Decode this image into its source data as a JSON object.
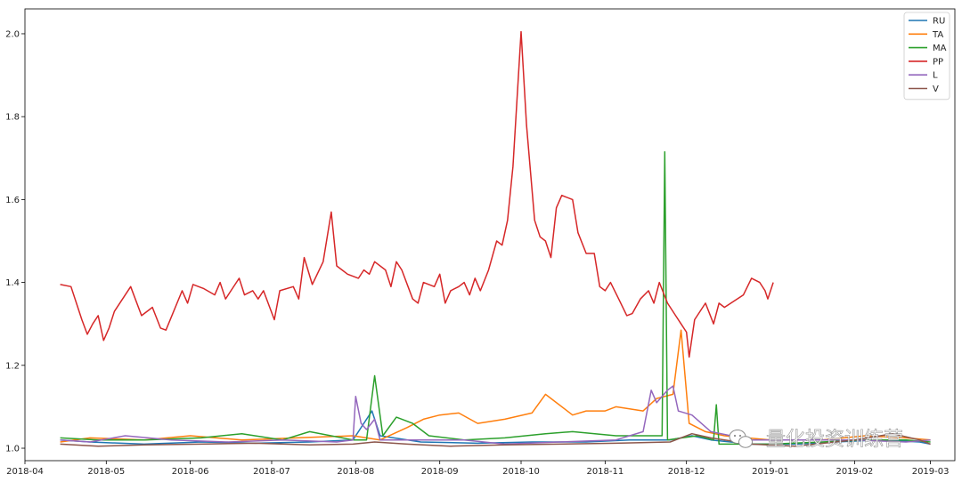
{
  "chart_data": {
    "type": "line",
    "title": "",
    "xlabel": "",
    "ylabel": "",
    "x_range": [
      "2018-04-01",
      "2019-03-10"
    ],
    "ylim": [
      0.97,
      2.06
    ],
    "grid": false,
    "legend_position": "top-right",
    "x_ticks": [
      "2018-04",
      "2018-05",
      "2018-06",
      "2018-07",
      "2018-08",
      "2018-09",
      "2018-10",
      "2018-11",
      "2018-12",
      "2019-01",
      "2019-02",
      "2019-03"
    ],
    "y_ticks": [
      "1.0",
      "1.2",
      "1.4",
      "1.6",
      "1.8",
      "2.0"
    ],
    "series": [
      {
        "name": "RU",
        "color": "#1f77b4",
        "points": [
          [
            "2018-04-14",
            1.02
          ],
          [
            "2018-04-25",
            1.015
          ],
          [
            "2018-05-15",
            1.01
          ],
          [
            "2018-06-05",
            1.015
          ],
          [
            "2018-06-25",
            1.012
          ],
          [
            "2018-07-15",
            1.015
          ],
          [
            "2018-07-31",
            1.02
          ],
          [
            "2018-08-07",
            1.09
          ],
          [
            "2018-08-10",
            1.03
          ],
          [
            "2018-08-25",
            1.015
          ],
          [
            "2018-09-15",
            1.012
          ],
          [
            "2018-10-05",
            1.015
          ],
          [
            "2018-10-25",
            1.015
          ],
          [
            "2018-11-10",
            1.02
          ],
          [
            "2018-11-25",
            1.02
          ],
          [
            "2018-12-03",
            1.03
          ],
          [
            "2018-12-10",
            1.02
          ],
          [
            "2018-12-25",
            1.01
          ],
          [
            "2019-01-10",
            1.01
          ],
          [
            "2019-01-25",
            1.015
          ],
          [
            "2019-02-10",
            1.02
          ],
          [
            "2019-02-25",
            1.015
          ],
          [
            "2019-03-01",
            1.01
          ]
        ]
      },
      {
        "name": "TA",
        "color": "#ff7f0e",
        "points": [
          [
            "2018-04-14",
            1.015
          ],
          [
            "2018-04-25",
            1.025
          ],
          [
            "2018-05-15",
            1.02
          ],
          [
            "2018-06-01",
            1.03
          ],
          [
            "2018-06-20",
            1.02
          ],
          [
            "2018-07-10",
            1.025
          ],
          [
            "2018-07-31",
            1.03
          ],
          [
            "2018-08-10",
            1.02
          ],
          [
            "2018-08-20",
            1.05
          ],
          [
            "2018-08-26",
            1.07
          ],
          [
            "2018-09-01",
            1.08
          ],
          [
            "2018-09-08",
            1.085
          ],
          [
            "2018-09-15",
            1.06
          ],
          [
            "2018-09-25",
            1.07
          ],
          [
            "2018-10-05",
            1.085
          ],
          [
            "2018-10-10",
            1.13
          ],
          [
            "2018-10-20",
            1.08
          ],
          [
            "2018-10-25",
            1.09
          ],
          [
            "2018-11-01",
            1.09
          ],
          [
            "2018-11-05",
            1.1
          ],
          [
            "2018-11-15",
            1.09
          ],
          [
            "2018-11-20",
            1.12
          ],
          [
            "2018-11-26",
            1.13
          ],
          [
            "2018-11-29",
            1.285
          ],
          [
            "2018-12-02",
            1.06
          ],
          [
            "2018-12-08",
            1.04
          ],
          [
            "2018-12-15",
            1.03
          ],
          [
            "2019-01-01",
            1.02
          ],
          [
            "2019-01-20",
            1.02
          ],
          [
            "2019-02-05",
            1.03
          ],
          [
            "2019-02-20",
            1.025
          ],
          [
            "2019-03-01",
            1.02
          ]
        ]
      },
      {
        "name": "MA",
        "color": "#2ca02c",
        "points": [
          [
            "2018-04-14",
            1.025
          ],
          [
            "2018-04-28",
            1.02
          ],
          [
            "2018-05-15",
            1.02
          ],
          [
            "2018-06-05",
            1.025
          ],
          [
            "2018-06-20",
            1.035
          ],
          [
            "2018-07-05",
            1.02
          ],
          [
            "2018-07-15",
            1.04
          ],
          [
            "2018-07-31",
            1.02
          ],
          [
            "2018-08-05",
            1.02
          ],
          [
            "2018-08-08",
            1.175
          ],
          [
            "2018-08-11",
            1.03
          ],
          [
            "2018-08-16",
            1.075
          ],
          [
            "2018-08-22",
            1.06
          ],
          [
            "2018-08-28",
            1.03
          ],
          [
            "2018-09-10",
            1.02
          ],
          [
            "2018-09-25",
            1.025
          ],
          [
            "2018-10-10",
            1.035
          ],
          [
            "2018-10-20",
            1.04
          ],
          [
            "2018-11-05",
            1.03
          ],
          [
            "2018-11-15",
            1.03
          ],
          [
            "2018-11-22",
            1.03
          ],
          [
            "2018-11-23",
            1.715
          ],
          [
            "2018-11-24",
            1.02
          ],
          [
            "2018-12-05",
            1.03
          ],
          [
            "2018-12-11",
            1.02
          ],
          [
            "2018-12-12",
            1.105
          ],
          [
            "2018-12-13",
            1.01
          ],
          [
            "2019-01-01",
            1.01
          ],
          [
            "2019-01-20",
            1.015
          ],
          [
            "2019-02-05",
            1.02
          ],
          [
            "2019-02-20",
            1.02
          ],
          [
            "2019-03-01",
            1.015
          ]
        ]
      },
      {
        "name": "PP",
        "color": "#d62728",
        "points": [
          [
            "2018-04-14",
            1.395
          ],
          [
            "2018-04-18",
            1.39
          ],
          [
            "2018-04-20",
            1.35
          ],
          [
            "2018-04-22",
            1.31
          ],
          [
            "2018-04-24",
            1.275
          ],
          [
            "2018-04-26",
            1.3
          ],
          [
            "2018-04-28",
            1.32
          ],
          [
            "2018-04-30",
            1.26
          ],
          [
            "2018-05-02",
            1.29
          ],
          [
            "2018-05-04",
            1.33
          ],
          [
            "2018-05-10",
            1.39
          ],
          [
            "2018-05-14",
            1.32
          ],
          [
            "2018-05-18",
            1.34
          ],
          [
            "2018-05-21",
            1.29
          ],
          [
            "2018-05-23",
            1.285
          ],
          [
            "2018-05-29",
            1.38
          ],
          [
            "2018-05-31",
            1.35
          ],
          [
            "2018-06-02",
            1.395
          ],
          [
            "2018-06-06",
            1.385
          ],
          [
            "2018-06-10",
            1.37
          ],
          [
            "2018-06-12",
            1.4
          ],
          [
            "2018-06-14",
            1.36
          ],
          [
            "2018-06-16",
            1.38
          ],
          [
            "2018-06-19",
            1.41
          ],
          [
            "2018-06-21",
            1.37
          ],
          [
            "2018-06-24",
            1.38
          ],
          [
            "2018-06-26",
            1.36
          ],
          [
            "2018-06-28",
            1.38
          ],
          [
            "2018-07-02",
            1.31
          ],
          [
            "2018-07-04",
            1.38
          ],
          [
            "2018-07-09",
            1.39
          ],
          [
            "2018-07-11",
            1.36
          ],
          [
            "2018-07-13",
            1.46
          ],
          [
            "2018-07-16",
            1.395
          ],
          [
            "2018-07-20",
            1.45
          ],
          [
            "2018-07-23",
            1.57
          ],
          [
            "2018-07-25",
            1.44
          ],
          [
            "2018-07-27",
            1.43
          ],
          [
            "2018-07-29",
            1.42
          ],
          [
            "2018-08-02",
            1.41
          ],
          [
            "2018-08-04",
            1.43
          ],
          [
            "2018-08-06",
            1.42
          ],
          [
            "2018-08-08",
            1.45
          ],
          [
            "2018-08-12",
            1.43
          ],
          [
            "2018-08-14",
            1.39
          ],
          [
            "2018-08-16",
            1.45
          ],
          [
            "2018-08-18",
            1.43
          ],
          [
            "2018-08-22",
            1.36
          ],
          [
            "2018-08-24",
            1.35
          ],
          [
            "2018-08-26",
            1.4
          ],
          [
            "2018-08-30",
            1.39
          ],
          [
            "2018-09-01",
            1.42
          ],
          [
            "2018-09-03",
            1.35
          ],
          [
            "2018-09-05",
            1.38
          ],
          [
            "2018-09-08",
            1.39
          ],
          [
            "2018-09-10",
            1.4
          ],
          [
            "2018-09-12",
            1.37
          ],
          [
            "2018-09-14",
            1.41
          ],
          [
            "2018-09-16",
            1.38
          ],
          [
            "2018-09-19",
            1.43
          ],
          [
            "2018-09-22",
            1.5
          ],
          [
            "2018-09-24",
            1.49
          ],
          [
            "2018-09-26",
            1.55
          ],
          [
            "2018-09-28",
            1.68
          ],
          [
            "2018-10-01",
            2.005
          ],
          [
            "2018-10-03",
            1.78
          ],
          [
            "2018-10-06",
            1.55
          ],
          [
            "2018-10-08",
            1.51
          ],
          [
            "2018-10-10",
            1.5
          ],
          [
            "2018-10-12",
            1.46
          ],
          [
            "2018-10-14",
            1.58
          ],
          [
            "2018-10-16",
            1.61
          ],
          [
            "2018-10-20",
            1.6
          ],
          [
            "2018-10-22",
            1.52
          ],
          [
            "2018-10-25",
            1.47
          ],
          [
            "2018-10-28",
            1.47
          ],
          [
            "2018-10-30",
            1.39
          ],
          [
            "2018-11-01",
            1.38
          ],
          [
            "2018-11-03",
            1.4
          ],
          [
            "2018-11-06",
            1.36
          ],
          [
            "2018-11-09",
            1.32
          ],
          [
            "2018-11-11",
            1.325
          ],
          [
            "2018-11-14",
            1.36
          ],
          [
            "2018-11-17",
            1.38
          ],
          [
            "2018-11-19",
            1.35
          ],
          [
            "2018-11-21",
            1.4
          ],
          [
            "2018-11-24",
            1.35
          ],
          [
            "2018-11-27",
            1.32
          ],
          [
            "2018-11-29",
            1.3
          ],
          [
            "2018-12-01",
            1.28
          ],
          [
            "2018-12-02",
            1.22
          ],
          [
            "2018-12-04",
            1.31
          ],
          [
            "2018-12-08",
            1.35
          ],
          [
            "2018-12-11",
            1.3
          ],
          [
            "2018-12-13",
            1.35
          ],
          [
            "2018-12-15",
            1.34
          ],
          [
            "2018-12-22",
            1.37
          ],
          [
            "2018-12-25",
            1.41
          ],
          [
            "2018-12-28",
            1.4
          ],
          [
            "2018-12-30",
            1.38
          ],
          [
            "2018-12-31",
            1.36
          ],
          [
            "2019-01-02",
            1.4
          ]
        ]
      },
      {
        "name": "L",
        "color": "#9467bd",
        "points": [
          [
            "2018-04-14",
            1.02
          ],
          [
            "2018-04-25",
            1.015
          ],
          [
            "2018-05-08",
            1.03
          ],
          [
            "2018-05-25",
            1.02
          ],
          [
            "2018-06-15",
            1.015
          ],
          [
            "2018-07-05",
            1.02
          ],
          [
            "2018-07-25",
            1.015
          ],
          [
            "2018-07-31",
            1.02
          ],
          [
            "2018-08-01",
            1.125
          ],
          [
            "2018-08-03",
            1.06
          ],
          [
            "2018-08-05",
            1.045
          ],
          [
            "2018-08-08",
            1.07
          ],
          [
            "2018-08-10",
            1.02
          ],
          [
            "2018-08-25",
            1.02
          ],
          [
            "2018-09-10",
            1.02
          ],
          [
            "2018-09-25",
            1.01
          ],
          [
            "2018-10-15",
            1.015
          ],
          [
            "2018-11-05",
            1.02
          ],
          [
            "2018-11-15",
            1.04
          ],
          [
            "2018-11-18",
            1.14
          ],
          [
            "2018-11-20",
            1.11
          ],
          [
            "2018-11-24",
            1.14
          ],
          [
            "2018-11-26",
            1.15
          ],
          [
            "2018-11-28",
            1.09
          ],
          [
            "2018-12-03",
            1.08
          ],
          [
            "2018-12-10",
            1.04
          ],
          [
            "2018-12-25",
            1.02
          ],
          [
            "2019-01-10",
            1.02
          ],
          [
            "2019-02-01",
            1.02
          ],
          [
            "2019-02-20",
            1.015
          ],
          [
            "2019-03-01",
            1.02
          ]
        ]
      },
      {
        "name": "V",
        "color": "#8c564b",
        "points": [
          [
            "2018-04-14",
            1.01
          ],
          [
            "2018-04-28",
            1.005
          ],
          [
            "2018-05-15",
            1.008
          ],
          [
            "2018-06-05",
            1.01
          ],
          [
            "2018-06-25",
            1.012
          ],
          [
            "2018-07-15",
            1.008
          ],
          [
            "2018-07-31",
            1.01
          ],
          [
            "2018-08-08",
            1.015
          ],
          [
            "2018-08-20",
            1.01
          ],
          [
            "2018-09-05",
            1.005
          ],
          [
            "2018-09-25",
            1.008
          ],
          [
            "2018-10-15",
            1.01
          ],
          [
            "2018-11-05",
            1.012
          ],
          [
            "2018-11-25",
            1.015
          ],
          [
            "2018-12-03",
            1.035
          ],
          [
            "2018-12-10",
            1.025
          ],
          [
            "2018-12-25",
            1.01
          ],
          [
            "2019-01-10",
            1.005
          ],
          [
            "2019-02-01",
            1.02
          ],
          [
            "2019-02-15",
            1.035
          ],
          [
            "2019-02-25",
            1.02
          ],
          [
            "2019-03-01",
            1.01
          ]
        ]
      }
    ]
  },
  "watermark": {
    "icon": "wechat-icon",
    "text": "量化投资训练营"
  }
}
